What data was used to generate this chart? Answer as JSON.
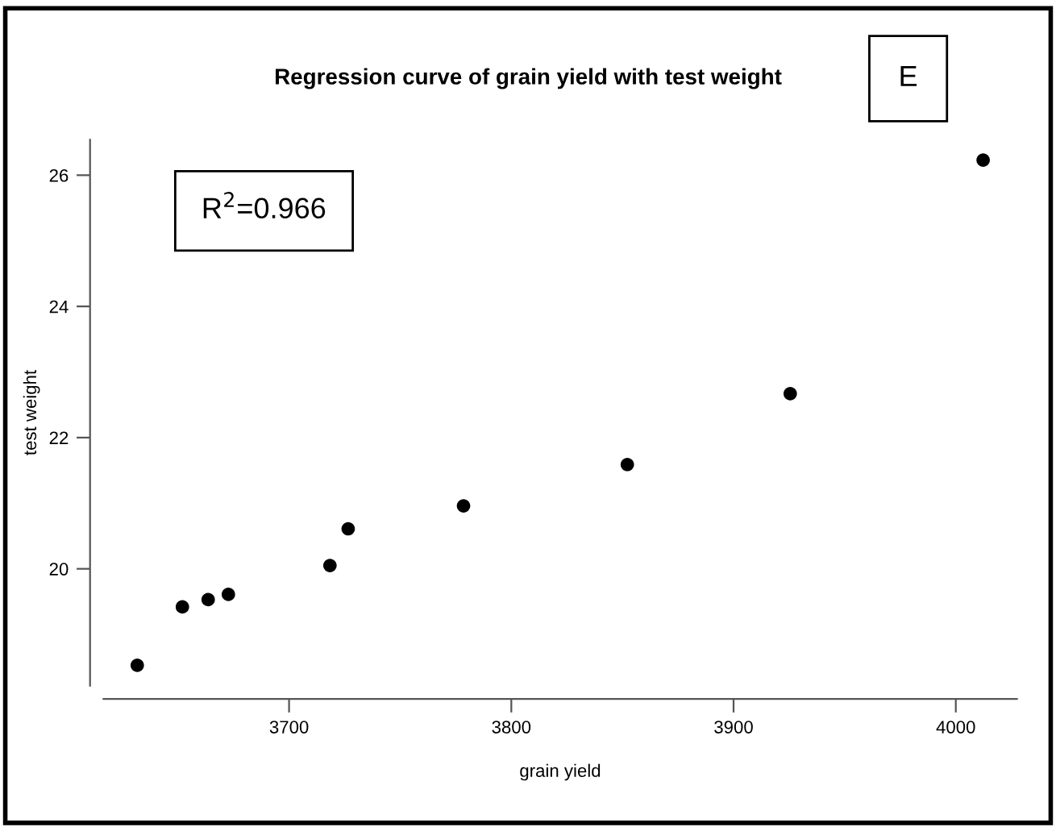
{
  "chart_data": {
    "type": "scatter",
    "title": "Regression curve of grain yield with test weight",
    "xlabel": "grain yield",
    "ylabel": "test weight",
    "annotations": [
      "R$^{2}$=0.966",
      "E"
    ],
    "x": [
      3631.7,
      3652,
      3663.6,
      3672.7,
      3718.4,
      3726.6,
      3778.5,
      3852.2,
      3925.5,
      4012.3
    ],
    "values": [
      18.53,
      19.42,
      19.53,
      19.61,
      20.05,
      20.61,
      20.96,
      21.59,
      22.67,
      26.23
    ],
    "color": "#000000",
    "marker": "circle",
    "xlim": [
      3616.5,
      4027.5
    ],
    "ylim": [
      18.22,
      26.54
    ],
    "xticks": [
      3700,
      3800,
      3900,
      4000
    ],
    "yticks": [
      20,
      22,
      24,
      26
    ],
    "grid": false
  }
}
